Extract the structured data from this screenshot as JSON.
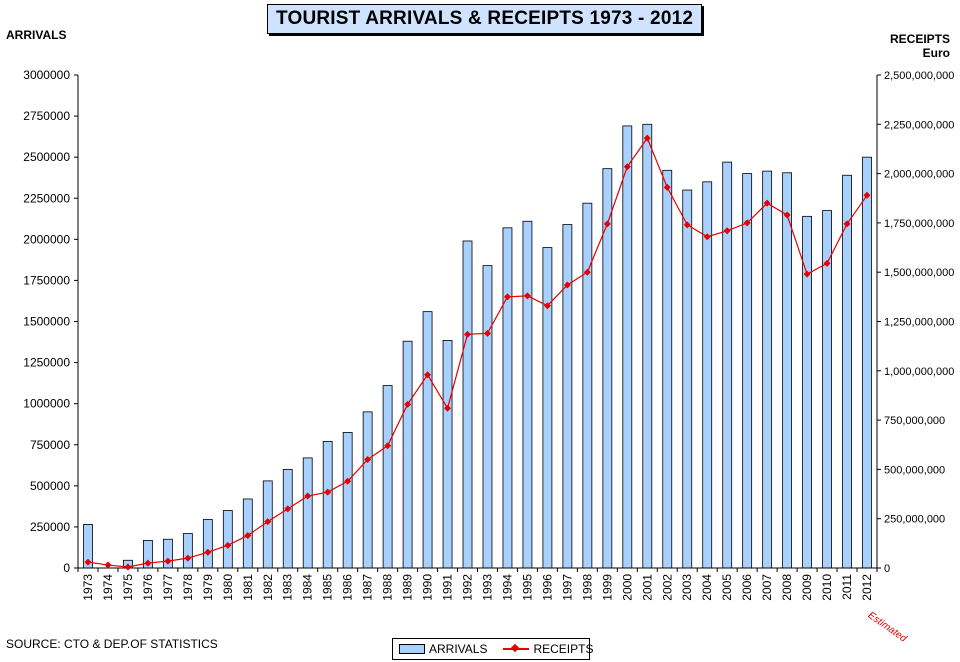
{
  "chart_data": {
    "type": "bar",
    "title": "TOURIST ARRIVALS  & RECEIPTS 1973 - 2012",
    "ylabel_left": "ARRIVALS",
    "ylabel_right": "RECEIPTS",
    "ylabel_right_unit": "Euro",
    "ylim": [
      0,
      3000000
    ],
    "y2lim": [
      0,
      2500000000
    ],
    "yticks": [
      "0",
      "250000",
      "500000",
      "750000",
      "1000000",
      "1250000",
      "1500000",
      "1750000",
      "2000000",
      "2250000",
      "2500000",
      "2750000",
      "3000000"
    ],
    "y2ticks": [
      "0",
      "250,000,000",
      "500,000,000",
      "750,000,000",
      "1,000,000,000",
      "1,250,000,000",
      "1,500,000,000",
      "1,750,000,000",
      "2,000,000,000",
      "2,250,000,000",
      "2,500,000,000"
    ],
    "categories": [
      "1973",
      "1974",
      "1975",
      "1976",
      "1977",
      "1978",
      "1979",
      "1980",
      "1981",
      "1982",
      "1983",
      "1984",
      "1985",
      "1986",
      "1987",
      "1988",
      "1989",
      "1990",
      "1991",
      "1992",
      "1993",
      "1994",
      "1995",
      "1996",
      "1997",
      "1998",
      "1999",
      "2000",
      "2001",
      "2002",
      "2003",
      "2004",
      "2005",
      "2006",
      "2007",
      "2008",
      "2009",
      "2010",
      "2011",
      "2012"
    ],
    "series": [
      {
        "name": "ARRIVALS",
        "type": "bar",
        "axis": "left",
        "color": "#a9d1ff",
        "values": [
          265000,
          0,
          47000,
          168000,
          175000,
          210000,
          295000,
          350000,
          420000,
          530000,
          600000,
          670000,
          770000,
          825000,
          950000,
          1110000,
          1380000,
          1560000,
          1385000,
          1990000,
          1840000,
          2070000,
          2110000,
          1950000,
          2090000,
          2220000,
          2430000,
          2690000,
          2700000,
          2420000,
          2300000,
          2350000,
          2470000,
          2400000,
          2415000,
          2405000,
          2140000,
          2175000,
          2390000,
          2500000
        ]
      },
      {
        "name": "RECEIPTS",
        "type": "line",
        "axis": "right",
        "color": "#e60000",
        "values": [
          30000000,
          15000000,
          5000000,
          25000000,
          35000000,
          50000000,
          80000000,
          115000000,
          165000000,
          235000000,
          300000000,
          365000000,
          385000000,
          440000000,
          550000000,
          620000000,
          830000000,
          980000000,
          810000000,
          1185000000,
          1190000000,
          1375000000,
          1380000000,
          1330000000,
          1435000000,
          1500000000,
          1745000000,
          2035000000,
          2180000000,
          1930000000,
          1740000000,
          1680000000,
          1710000000,
          1750000000,
          1850000000,
          1790000000,
          1490000000,
          1545000000,
          1745000000,
          1890000000
        ]
      }
    ],
    "legend": [
      "ARRIVALS",
      "RECEIPTS"
    ],
    "legend_position": "bottom-center",
    "annotation": "Estimated",
    "source": "SOURCE: CTO  & DEP.OF STATISTICS"
  }
}
